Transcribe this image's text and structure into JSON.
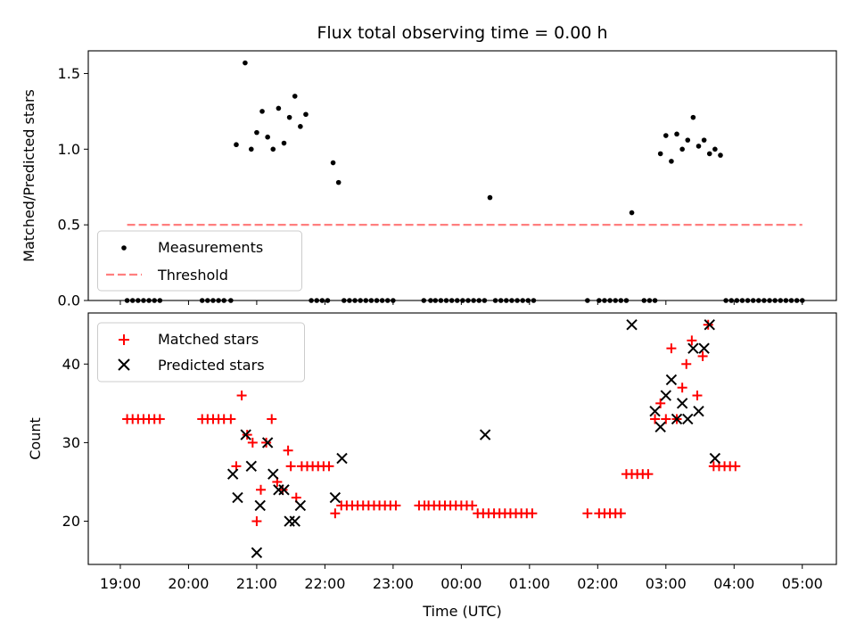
{
  "chart_data": [
    {
      "type": "scatter",
      "title": "Flux total observing time = 0.00 h",
      "xlabel": "",
      "ylabel": "Matched/Predicted stars",
      "xlim": [
        18.53,
        29.5
      ],
      "ylim": [
        0,
        1.65
      ],
      "yticks": [
        0.0,
        0.5,
        1.0,
        1.5
      ],
      "ytick_labels": [
        "0.0",
        "0.5",
        "1.0",
        "1.5"
      ],
      "threshold": {
        "name": "Threshold",
        "value": 0.5,
        "x_range": [
          19.1,
          29.0
        ],
        "color": "#ff7f7f"
      },
      "legend": {
        "position": "lower-left",
        "entries": [
          "Measurements",
          "Threshold"
        ]
      },
      "series": [
        {
          "name": "Measurements",
          "color": "#000000",
          "x": [
            19.1,
            19.18,
            19.26,
            19.34,
            19.42,
            19.5,
            19.58,
            20.2,
            20.28,
            20.36,
            20.44,
            20.52,
            20.62,
            20.7,
            20.83,
            20.92,
            21.0,
            21.08,
            21.16,
            21.24,
            21.32,
            21.4,
            21.48,
            21.56,
            21.64,
            21.72,
            21.8,
            21.88,
            21.96,
            22.04,
            22.12,
            22.2,
            22.28,
            22.36,
            22.44,
            22.52,
            22.6,
            22.68,
            22.76,
            22.84,
            22.92,
            23.0,
            23.45,
            23.55,
            23.62,
            23.7,
            23.78,
            23.86,
            23.94,
            24.02,
            24.1,
            24.18,
            24.26,
            24.34,
            24.42,
            24.5,
            24.58,
            24.66,
            24.74,
            24.82,
            24.9,
            24.98,
            25.06,
            25.85,
            26.02,
            26.1,
            26.18,
            26.26,
            26.34,
            26.42,
            26.5,
            26.68,
            26.76,
            26.84,
            26.92,
            27.0,
            27.08,
            27.16,
            27.24,
            27.32,
            27.4,
            27.48,
            27.56,
            27.64,
            27.72,
            27.8,
            27.88,
            27.96,
            28.04,
            28.12,
            28.2,
            28.28,
            28.36,
            28.44,
            28.52,
            28.6,
            28.68,
            28.76,
            28.84,
            28.92,
            29.0
          ],
          "y": [
            0.0,
            0.0,
            0.0,
            0.0,
            0.0,
            0.0,
            0.0,
            0.0,
            0.0,
            0.0,
            0.0,
            0.0,
            0.0,
            1.03,
            1.57,
            1.0,
            1.11,
            1.25,
            1.08,
            1.0,
            1.27,
            1.04,
            1.21,
            1.35,
            1.15,
            1.23,
            0.0,
            0.0,
            0.0,
            0.0,
            0.91,
            0.78,
            0.0,
            0.0,
            0.0,
            0.0,
            0.0,
            0.0,
            0.0,
            0.0,
            0.0,
            0.0,
            0.0,
            0.0,
            0.0,
            0.0,
            0.0,
            0.0,
            0.0,
            0.0,
            0.0,
            0.0,
            0.0,
            0.0,
            0.68,
            0.0,
            0.0,
            0.0,
            0.0,
            0.0,
            0.0,
            0.0,
            0.0,
            0.0,
            0.0,
            0.0,
            0.0,
            0.0,
            0.0,
            0.0,
            0.58,
            0.0,
            0.0,
            0.0,
            0.97,
            1.09,
            0.92,
            1.1,
            1.0,
            1.06,
            1.21,
            1.02,
            1.06,
            0.97,
            1.0,
            0.96,
            0.0,
            0.0,
            0.0,
            0.0,
            0.0,
            0.0,
            0.0,
            0.0,
            0.0,
            0.0,
            0.0,
            0.0,
            0.0,
            0.0,
            0.0
          ]
        }
      ]
    },
    {
      "type": "scatter",
      "title": "",
      "xlabel": "Time (UTC)",
      "ylabel": "Count",
      "xlim": [
        18.53,
        29.5
      ],
      "ylim": [
        14.5,
        46.5
      ],
      "yticks": [
        20,
        30,
        40
      ],
      "ytick_labels": [
        "20",
        "30",
        "40"
      ],
      "xticks": [
        19,
        20,
        21,
        22,
        23,
        24,
        25,
        26,
        27,
        28,
        29
      ],
      "xtick_labels": [
        "19:00",
        "20:00",
        "21:00",
        "22:00",
        "23:00",
        "00:00",
        "01:00",
        "02:00",
        "03:00",
        "04:00",
        "05:00"
      ],
      "legend": {
        "position": "upper-left",
        "entries": [
          "Matched stars",
          "Predicted stars"
        ]
      },
      "series": [
        {
          "name": "Matched stars",
          "marker": "plus",
          "color": "#ff0000",
          "x": [
            19.1,
            19.18,
            19.26,
            19.34,
            19.42,
            19.5,
            19.58,
            20.2,
            20.28,
            20.36,
            20.44,
            20.52,
            20.62,
            20.7,
            20.78,
            20.86,
            20.94,
            21.0,
            21.06,
            21.14,
            21.22,
            21.3,
            21.38,
            21.46,
            21.5,
            21.58,
            21.66,
            21.74,
            21.82,
            21.9,
            21.98,
            22.06,
            22.15,
            22.24,
            22.32,
            22.4,
            22.48,
            22.56,
            22.64,
            22.72,
            22.8,
            22.88,
            22.96,
            23.04,
            23.38,
            23.46,
            23.52,
            23.6,
            23.68,
            23.76,
            23.84,
            23.92,
            24.0,
            24.08,
            24.16,
            24.24,
            24.32,
            24.4,
            24.48,
            24.56,
            24.64,
            24.72,
            24.8,
            24.88,
            24.96,
            25.04,
            25.85,
            26.02,
            26.1,
            26.18,
            26.26,
            26.34,
            26.42,
            26.5,
            26.58,
            26.66,
            26.74,
            26.84,
            26.92,
            27.0,
            27.08,
            27.16,
            27.24,
            27.3,
            27.38,
            27.46,
            27.54,
            27.62,
            27.7,
            27.78,
            27.86,
            27.94,
            28.02
          ],
          "y": [
            33,
            33,
            33,
            33,
            33,
            33,
            33,
            33,
            33,
            33,
            33,
            33,
            33,
            27,
            36,
            31,
            30,
            20,
            24,
            30,
            33,
            25,
            24,
            29,
            27,
            23,
            27,
            27,
            27,
            27,
            27,
            27,
            21,
            22,
            22,
            22,
            22,
            22,
            22,
            22,
            22,
            22,
            22,
            22,
            22,
            22,
            22,
            22,
            22,
            22,
            22,
            22,
            22,
            22,
            22,
            21,
            21,
            21,
            21,
            21,
            21,
            21,
            21,
            21,
            21,
            21,
            21,
            21,
            21,
            21,
            21,
            21,
            26,
            26,
            26,
            26,
            26,
            33,
            35,
            33,
            42,
            33,
            37,
            40,
            43,
            36,
            41,
            45,
            27,
            27,
            27,
            27,
            27
          ]
        },
        {
          "name": "Predicted stars",
          "marker": "x",
          "color": "#000000",
          "x": [
            20.65,
            20.72,
            20.84,
            20.92,
            21.0,
            21.05,
            21.16,
            21.24,
            21.32,
            21.4,
            21.48,
            21.56,
            21.64,
            22.15,
            22.25,
            24.35,
            26.5,
            26.84,
            26.92,
            27.0,
            27.08,
            27.16,
            27.24,
            27.32,
            27.4,
            27.48,
            27.56,
            27.64,
            27.72
          ],
          "y": [
            26,
            23,
            31,
            27,
            16,
            22,
            30,
            26,
            24,
            24,
            20,
            20,
            22,
            23,
            28,
            31,
            45,
            34,
            32,
            36,
            38,
            33,
            35,
            33,
            42,
            34,
            42,
            45,
            28
          ]
        }
      ]
    }
  ]
}
